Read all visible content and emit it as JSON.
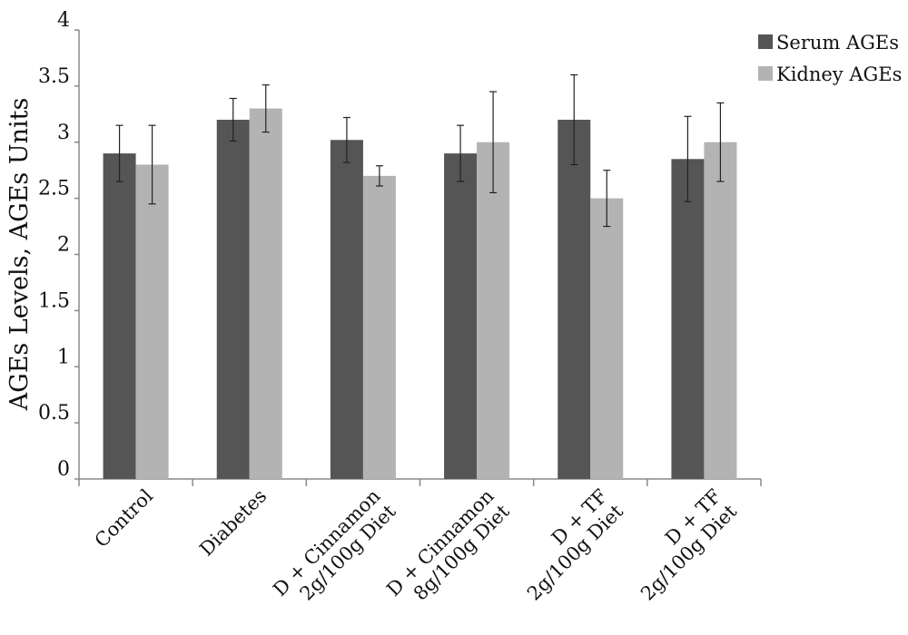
{
  "chart_data": {
    "type": "bar",
    "title": "",
    "xlabel": "",
    "ylabel": "AGEs Levels, AGEs Units",
    "ylim": [
      0,
      4
    ],
    "yticks": [
      "0",
      "0.5",
      "1",
      "1.5",
      "2",
      "2.5",
      "3",
      "3.5",
      "4"
    ],
    "grid": false,
    "legend_position": "top-right",
    "categories": [
      {
        "line1": "Control",
        "line2": ""
      },
      {
        "line1": "Diabetes",
        "line2": ""
      },
      {
        "line1": "D + Cinnamon",
        "line2": "2g/100g Diet"
      },
      {
        "line1": "D + Cinnamon",
        "line2": "8g/100g Diet"
      },
      {
        "line1": "D + TF",
        "line2": "2g/100g Diet"
      },
      {
        "line1": "D + TF",
        "line2": "2g/100g Diet"
      }
    ],
    "series": [
      {
        "name": "Serum AGEs",
        "color": "#555555",
        "values": [
          2.9,
          3.2,
          3.02,
          2.9,
          3.2,
          2.85
        ],
        "error": [
          0.25,
          0.19,
          0.2,
          0.25,
          0.4,
          0.38
        ]
      },
      {
        "name": "Kidney AGEs",
        "color": "#b3b3b3",
        "values": [
          2.8,
          3.3,
          2.7,
          3.0,
          2.5,
          3.0
        ],
        "error": [
          0.35,
          0.21,
          0.09,
          0.45,
          0.25,
          0.35
        ]
      }
    ]
  }
}
